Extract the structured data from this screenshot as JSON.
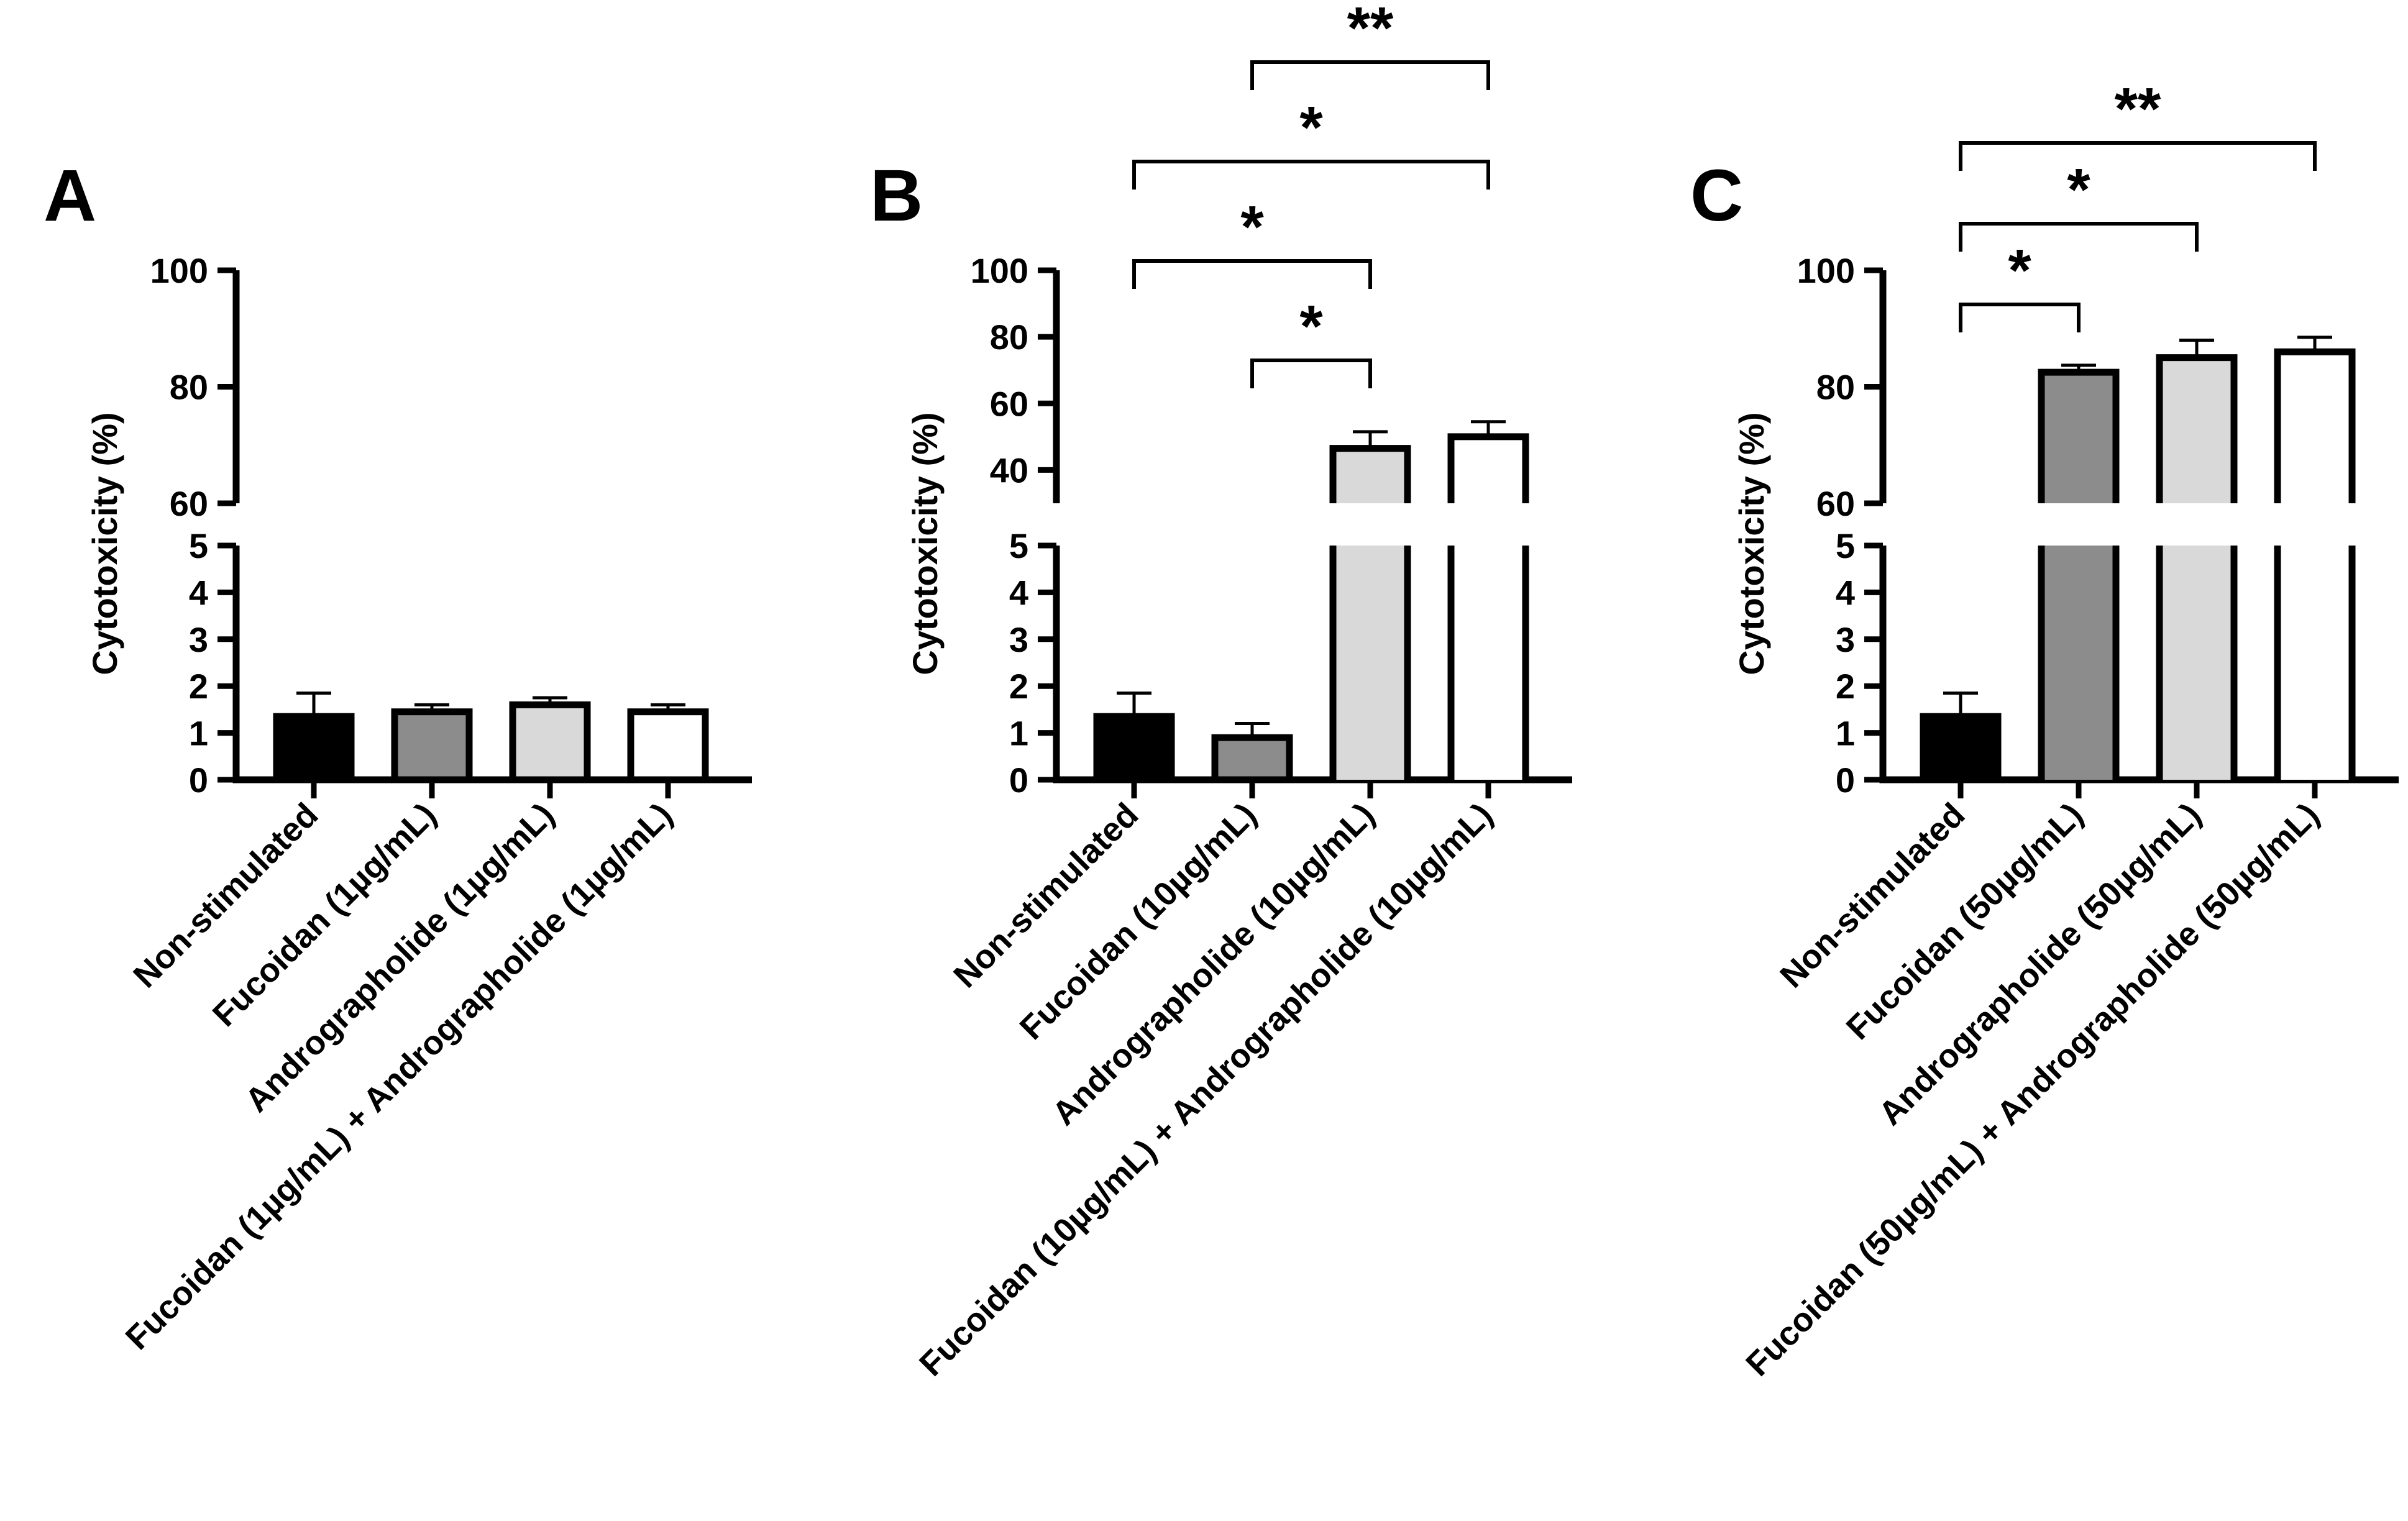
{
  "chart_data": [
    {
      "type": "bar",
      "panel_label": "A",
      "ylabel": "Cytotoxicity (%)",
      "categories": [
        "Non-stimulated",
        "Fucoidan (1µg/mL)",
        "Andrographolide (1µg/mL)",
        "Fucoidan (1µg/mL)  + Andrographolide (1µg/mL)"
      ],
      "values": [
        1.35,
        1.45,
        1.6,
        1.45
      ],
      "errors": [
        0.5,
        0.15,
        0.15,
        0.15
      ],
      "fill_colors": [
        "#000000",
        "#8c8c8c",
        "#d9d9d9",
        "#ffffff"
      ],
      "axis_lower": {
        "ylim": [
          0,
          5
        ],
        "ticks": [
          "0",
          "1",
          "2",
          "3",
          "4",
          "5"
        ]
      },
      "axis_upper": {
        "ylim": [
          60,
          100
        ],
        "ticks": [
          "60",
          "80",
          "100"
        ]
      },
      "significance": []
    },
    {
      "type": "bar",
      "panel_label": "B",
      "ylabel": "Cytotoxicity (%)",
      "categories": [
        "Non-stimulated",
        "Fucoidan (10µg/mL)",
        "Andrographolide (10µg/mL)",
        "Fucoidan (10µg/mL)  + Andrographolide (10µg/mL)"
      ],
      "values": [
        1.35,
        0.9,
        46.5,
        50
      ],
      "errors": [
        0.5,
        0.3,
        5,
        4.5
      ],
      "fill_colors": [
        "#000000",
        "#8c8c8c",
        "#d9d9d9",
        "#ffffff"
      ],
      "axis_lower": {
        "ylim": [
          0,
          5
        ],
        "ticks": [
          "0",
          "1",
          "2",
          "3",
          "4",
          "5"
        ]
      },
      "axis_upper": {
        "ylim": [
          30,
          100
        ],
        "ticks": [
          "40",
          "60",
          "80",
          "100"
        ]
      },
      "significance": [
        {
          "from": 1,
          "to": 2,
          "label": "*"
        },
        {
          "from": 0,
          "to": 2,
          "label": "*"
        },
        {
          "from": 0,
          "to": 3,
          "label": "*"
        },
        {
          "from": 1,
          "to": 3,
          "label": "**"
        }
      ]
    },
    {
      "type": "bar",
      "panel_label": "C",
      "ylabel": "Cytotoxicity (%)",
      "categories": [
        "Non-stimulated",
        "Fucoidan (50µg/mL)",
        "Andrographolide (50µg/mL)",
        "Fucoidan (50µg/mL)  + Andrographolide (50µg/mL)"
      ],
      "values": [
        1.35,
        82.5,
        85,
        86
      ],
      "errors": [
        0.5,
        1.2,
        3,
        2.5
      ],
      "fill_colors": [
        "#000000",
        "#8c8c8c",
        "#d9d9d9",
        "#ffffff"
      ],
      "axis_lower": {
        "ylim": [
          0,
          5
        ],
        "ticks": [
          "0",
          "1",
          "2",
          "3",
          "4",
          "5"
        ]
      },
      "axis_upper": {
        "ylim": [
          60,
          100
        ],
        "ticks": [
          "60",
          "80",
          "100"
        ]
      },
      "significance": [
        {
          "from": 0,
          "to": 1,
          "label": "*"
        },
        {
          "from": 0,
          "to": 2,
          "label": "*"
        },
        {
          "from": 0,
          "to": 3,
          "label": "**"
        }
      ]
    }
  ]
}
